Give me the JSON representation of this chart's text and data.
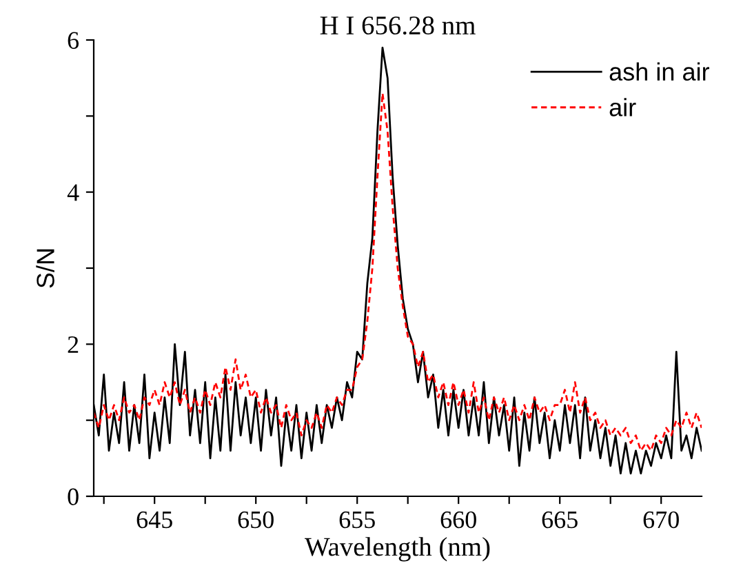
{
  "chart_data": {
    "type": "line",
    "title": "H I 656.28 nm",
    "xlabel": "Wavelength (nm)",
    "ylabel": "S/N",
    "x": [
      642,
      642.25,
      642.5,
      642.75,
      643,
      643.25,
      643.5,
      643.75,
      644,
      644.25,
      644.5,
      644.75,
      645,
      645.25,
      645.5,
      645.75,
      646,
      646.25,
      646.5,
      646.75,
      647,
      647.25,
      647.5,
      647.75,
      648,
      648.25,
      648.5,
      648.75,
      649,
      649.25,
      649.5,
      649.75,
      650,
      650.25,
      650.5,
      650.75,
      651,
      651.25,
      651.5,
      651.75,
      652,
      652.25,
      652.5,
      652.75,
      653,
      653.25,
      653.5,
      653.75,
      654,
      654.25,
      654.5,
      654.75,
      655,
      655.25,
      655.5,
      655.75,
      656,
      656.25,
      656.5,
      656.75,
      657,
      657.25,
      657.5,
      657.75,
      658,
      658.25,
      658.5,
      658.75,
      659,
      659.25,
      659.5,
      659.75,
      660,
      660.25,
      660.5,
      660.75,
      661,
      661.25,
      661.5,
      661.75,
      662,
      662.25,
      662.5,
      662.75,
      663,
      663.25,
      663.5,
      663.75,
      664,
      664.25,
      664.5,
      664.75,
      665,
      665.25,
      665.5,
      665.75,
      666,
      666.25,
      666.5,
      666.75,
      667,
      667.25,
      667.5,
      667.75,
      668,
      668.25,
      668.5,
      668.75,
      669,
      669.25,
      669.5,
      669.75,
      670,
      670.25,
      670.5,
      670.75,
      671,
      671.25,
      671.5,
      671.75,
      672
    ],
    "series": [
      {
        "name": "ash in air",
        "color": "#000000",
        "line_style": "solid",
        "values": [
          1.2,
          0.8,
          1.6,
          0.6,
          1.1,
          0.7,
          1.5,
          0.6,
          1.2,
          0.7,
          1.6,
          0.5,
          1.1,
          0.6,
          1.3,
          0.7,
          2.0,
          1.2,
          1.9,
          0.8,
          1.4,
          0.7,
          1.5,
          0.5,
          1.3,
          0.6,
          1.6,
          0.6,
          1.5,
          0.8,
          1.3,
          0.7,
          1.3,
          0.6,
          1.4,
          0.8,
          1.3,
          0.4,
          1.1,
          0.6,
          1.2,
          0.5,
          1.1,
          0.6,
          1.2,
          0.7,
          1.2,
          0.9,
          1.3,
          1.0,
          1.5,
          1.3,
          1.9,
          1.8,
          2.8,
          3.4,
          4.8,
          5.9,
          5.5,
          4.2,
          3.3,
          2.6,
          2.2,
          2.0,
          1.5,
          1.9,
          1.3,
          1.6,
          0.9,
          1.4,
          0.8,
          1.4,
          0.9,
          1.4,
          0.8,
          1.3,
          0.8,
          1.5,
          0.7,
          1.3,
          0.8,
          1.2,
          0.6,
          1.3,
          0.4,
          1.1,
          0.6,
          1.3,
          0.7,
          1.1,
          0.5,
          1.0,
          0.6,
          1.2,
          0.7,
          1.2,
          0.5,
          1.3,
          0.6,
          1.0,
          0.5,
          0.9,
          0.4,
          0.8,
          0.3,
          0.7,
          0.3,
          0.6,
          0.3,
          0.6,
          0.4,
          0.7,
          0.5,
          0.8,
          0.5,
          1.9,
          0.6,
          0.8,
          0.5,
          0.9,
          0.6
        ]
      },
      {
        "name": "air",
        "color": "#ff0000",
        "line_style": "dashed",
        "values": [
          1.1,
          0.9,
          1.2,
          1.0,
          1.2,
          1.0,
          1.3,
          1.1,
          1.2,
          1.0,
          1.3,
          1.2,
          1.4,
          1.2,
          1.5,
          1.3,
          1.5,
          1.2,
          1.4,
          1.1,
          1.3,
          1.1,
          1.4,
          1.2,
          1.5,
          1.3,
          1.7,
          1.4,
          1.8,
          1.4,
          1.6,
          1.3,
          1.4,
          1.1,
          1.3,
          1.1,
          1.2,
          0.9,
          1.2,
          1.0,
          1.1,
          0.8,
          1.0,
          0.9,
          1.1,
          0.9,
          1.2,
          1.1,
          1.3,
          1.2,
          1.4,
          1.4,
          1.7,
          1.8,
          2.3,
          3.0,
          4.2,
          5.3,
          4.8,
          3.8,
          3.0,
          2.5,
          2.1,
          2.0,
          1.7,
          1.9,
          1.5,
          1.6,
          1.3,
          1.5,
          1.2,
          1.5,
          1.2,
          1.4,
          1.1,
          1.5,
          1.1,
          1.3,
          1.0,
          1.3,
          1.1,
          1.3,
          1.0,
          1.2,
          1.0,
          1.2,
          1.0,
          1.3,
          1.1,
          1.2,
          1.0,
          1.2,
          1.2,
          1.4,
          1.1,
          1.5,
          1.1,
          1.3,
          1.0,
          1.1,
          0.9,
          1.0,
          0.8,
          0.9,
          0.8,
          0.9,
          0.7,
          0.8,
          0.6,
          0.7,
          0.6,
          0.8,
          0.7,
          0.9,
          0.8,
          1.0,
          0.9,
          1.1,
          0.9,
          1.1,
          0.9
        ]
      }
    ],
    "xlim": [
      642,
      672
    ],
    "ylim": [
      0,
      6
    ],
    "xticks": [
      {
        "value": 642.5,
        "label": null
      },
      645,
      {
        "value": 647.5,
        "label": null
      },
      650,
      {
        "value": 652.5,
        "label": null
      },
      655,
      {
        "value": 657.5,
        "label": null
      },
      660,
      {
        "value": 662.5,
        "label": null
      },
      665,
      {
        "value": 667.5,
        "label": null
      },
      670
    ],
    "yticks": [
      0,
      {
        "value": 1,
        "label": null
      },
      2,
      {
        "value": 3,
        "label": null
      },
      4,
      {
        "value": 5,
        "label": null
      },
      6
    ],
    "grid": false,
    "legend": "top right",
    "marker": "none"
  }
}
